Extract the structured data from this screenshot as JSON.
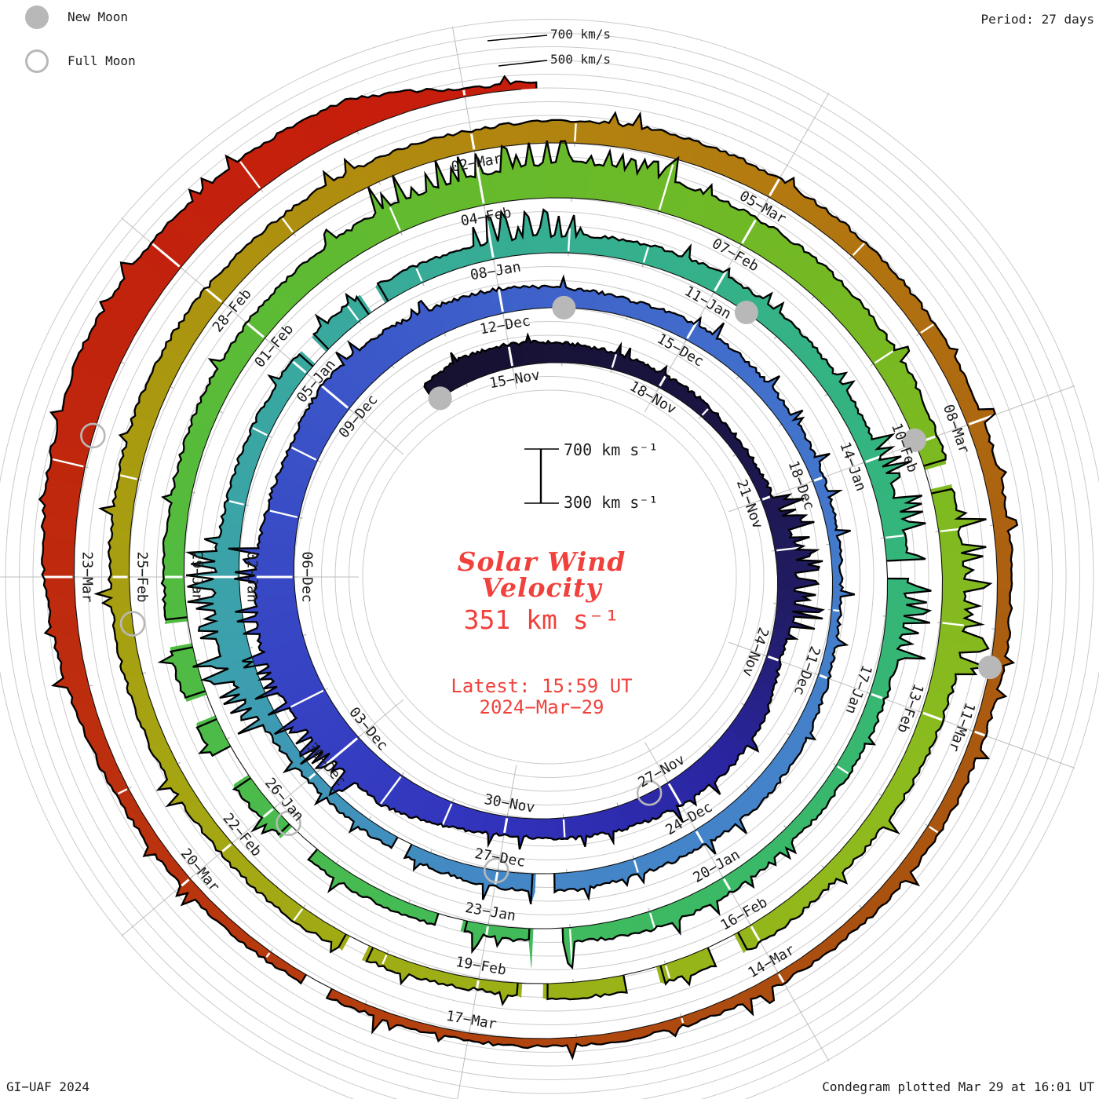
{
  "legend": {
    "new_moon": "New Moon",
    "full_moon": "Full Moon",
    "marker_color": "#b8b8b8"
  },
  "header_right": "Period: 27 days",
  "footer_left": "GI−UAF 2024",
  "footer_right": "Condegram plotted Mar 29 at 16:01 UT",
  "outer_scale": {
    "label_700": "700 km/s",
    "label_500": "500 km/s"
  },
  "center_text": {
    "scale_top": "700 km s⁻¹",
    "scale_bottom": "300 km s⁻¹",
    "title_line1": "Solar Wind",
    "title_line2": "Velocity",
    "current_value": "351 km s⁻¹",
    "latest_line1": "Latest: 15:59 UT",
    "latest_line2": "2024−Mar−29",
    "text_color": "#f0413c"
  },
  "chart_data": {
    "type": "area",
    "title": "Solar Wind Velocity (polar condegram, one ring = 27 days, clockwise from top)",
    "units": "km/s",
    "period_days": 27,
    "baseline_kms": 300,
    "ring_span_kms": 400,
    "grid_step_kms": 100,
    "start_date": "2023-Nov-13",
    "end_date": "2024-Mar-29",
    "latest_value_kms": 351,
    "latest_time": "15:59 UT 2024-Mar-29",
    "date_labels": [
      "15−Nov",
      "18−Nov",
      "21−Nov",
      "24−Nov",
      "27−Nov",
      "30−Nov",
      "03−Dec",
      "06−Dec",
      "09−Dec",
      "12−Dec",
      "15−Dec",
      "18−Dec",
      "21−Dec",
      "24−Dec",
      "27−Dec",
      "30−Dec",
      "02−Jan",
      "05−Jan",
      "08−Jan",
      "11−Jan",
      "14−Jan",
      "17−Jan",
      "20−Jan",
      "23−Jan",
      "26−Jan",
      "29−Jan",
      "01−Feb",
      "04−Feb",
      "07−Feb",
      "10−Feb",
      "13−Feb",
      "16−Feb",
      "19−Feb",
      "22−Feb",
      "25−Feb",
      "28−Feb",
      "02−Mar",
      "05−Mar",
      "08−Mar",
      "11−Mar",
      "14−Mar",
      "17−Mar",
      "20−Mar",
      "23−Mar"
    ],
    "daily_kms": [
      430,
      480,
      470,
      440,
      420,
      400,
      390,
      380,
      390,
      450,
      430,
      400,
      480,
      500,
      490,
      470,
      450,
      430,
      480,
      560,
      540,
      600,
      620,
      580,
      540,
      520,
      560,
      540,
      500,
      480,
      440,
      420,
      430,
      420,
      400,
      390,
      370,
      360,
      380,
      420,
      440,
      430,
      420,
      430,
      420,
      400,
      390,
      380,
      420,
      520,
      480,
      440,
      430,
      440,
      450,
      430,
      420,
      430,
      440,
      450,
      440,
      430,
      420,
      450,
      430,
      420,
      410,
      400,
      420,
      430,
      400,
      380,
      390,
      400,
      420,
      450,
      470,
      450,
      440,
      460,
      470,
      480,
      500,
      520,
      560,
      540,
      520,
      510,
      490,
      470,
      450,
      480,
      460,
      440,
      420,
      450,
      430,
      410,
      380,
      400,
      420,
      410,
      420,
      430,
      440,
      450,
      470,
      460,
      450,
      460,
      450,
      460,
      470,
      450,
      440,
      430,
      420,
      410,
      400,
      390,
      400,
      390,
      380,
      370,
      360,
      355,
      360,
      370,
      380,
      400,
      450,
      520,
      560,
      600,
      580,
      560,
      540,
      351
    ],
    "gaps": [
      [
        43.2,
        43.45
      ],
      [
        45.3,
        45.5
      ],
      [
        53.15,
        53.4
      ],
      [
        54.2,
        54.45
      ],
      [
        63.3,
        63.5
      ],
      [
        70.1,
        70.45
      ],
      [
        71.3,
        71.6
      ],
      [
        73.3,
        73.7
      ],
      [
        74.5,
        74.9
      ],
      [
        75.3,
        75.6
      ],
      [
        76.2,
        76.5
      ],
      [
        89.3,
        89.55
      ],
      [
        95.2,
        95.5
      ],
      [
        96.1,
        96.45
      ],
      [
        97.3,
        97.55
      ],
      [
        99.2,
        99.45
      ],
      [
        126.35,
        126.6
      ]
    ],
    "spiky_ranges": [
      [
        8,
        10.5
      ],
      [
        19.5,
        23.5
      ],
      [
        47.8,
        50.5
      ],
      [
        55.8,
        57.2
      ],
      [
        61.8,
        64.5
      ],
      [
        70,
        71.5
      ],
      [
        81.8,
        85.2
      ],
      [
        89.8,
        91.5
      ]
    ],
    "new_moon_dates": [
      "2023-Nov-13",
      "2023-Dec-12",
      "2024-Jan-11",
      "2024-Feb-09",
      "2024-Mar-10"
    ],
    "full_moon_dates": [
      "2023-Nov-27",
      "2023-Dec-27",
      "2024-Jan-25",
      "2024-Feb-24",
      "2024-Mar-25"
    ],
    "new_moon_idx": [
      0.39,
      29.98,
      59.5,
      88.96,
      118.37
    ],
    "full_moon_idx": [
      14.39,
      44.02,
      73.75,
      103.52,
      132.29
    ],
    "colormap": [
      [
        0,
        "#16112e"
      ],
      [
        6,
        "#1a1542"
      ],
      [
        10,
        "#211c63"
      ],
      [
        13,
        "#2a25a0"
      ],
      [
        17,
        "#3132bb"
      ],
      [
        21,
        "#3642c3"
      ],
      [
        26,
        "#3b55c8"
      ],
      [
        32,
        "#416bcb"
      ],
      [
        38,
        "#4480ca"
      ],
      [
        44,
        "#4487c6"
      ],
      [
        49,
        "#3ca0ad"
      ],
      [
        53,
        "#39a89f"
      ],
      [
        58,
        "#35b08d"
      ],
      [
        63,
        "#34b57b"
      ],
      [
        68,
        "#3bb966"
      ],
      [
        73,
        "#47bb50"
      ],
      [
        78,
        "#55bb3c"
      ],
      [
        83,
        "#65ba2c"
      ],
      [
        88,
        "#78b922"
      ],
      [
        93,
        "#8dbb1e"
      ],
      [
        97,
        "#9ab217"
      ],
      [
        101,
        "#a4a713"
      ],
      [
        105,
        "#a89c10"
      ],
      [
        109,
        "#b08b0f"
      ],
      [
        113,
        "#b37a10"
      ],
      [
        117,
        "#ac6210"
      ],
      [
        121,
        "#a95110"
      ],
      [
        125,
        "#b2430f"
      ],
      [
        129,
        "#bb300e"
      ],
      [
        133,
        "#c1240d"
      ],
      [
        137,
        "#c61d0c"
      ]
    ],
    "grid_color": "#cacaca",
    "spoke_color": "#bdbdbd",
    "tick_color": "#b3b3b3",
    "outline_color": "#000000",
    "legend_position": "top-left",
    "grid": "on"
  }
}
